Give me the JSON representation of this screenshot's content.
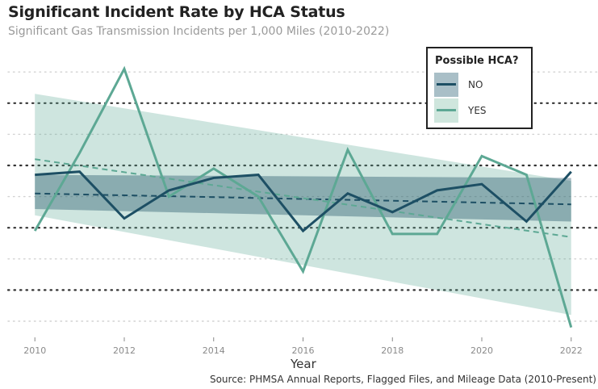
{
  "chart_data": {
    "type": "line",
    "title": "Significant Incident Rate by HCA Status",
    "subtitle": "Significant Gas Transmission Incidents per 1,000 Miles (2010-2022)",
    "xlabel": "Year",
    "ylabel": "",
    "source": "Source: PHMSA Annual Reports, Flagged Files, and Mileage Data (2010-Present)",
    "x": [
      2010,
      2011,
      2012,
      2013,
      2014,
      2015,
      2016,
      2017,
      2018,
      2019,
      2020,
      2021,
      2022
    ],
    "x_ticks": [
      "2010",
      "2012",
      "2014",
      "2016",
      "2018",
      "2020",
      "2022"
    ],
    "xlim": [
      2009.4,
      2022.6
    ],
    "ylim": [
      0.0,
      1.0
    ],
    "grid": "horizontal dotted",
    "legend": {
      "title": "Possible HCA?",
      "placement": "top-right"
    },
    "series": [
      {
        "name": "NO",
        "color": "#1d4f64",
        "values": [
          0.47,
          0.48,
          0.33,
          0.42,
          0.46,
          0.47,
          0.29,
          0.41,
          0.35,
          0.42,
          0.44,
          0.32,
          0.48
        ],
        "trend": [
          0.41,
          0.375
        ],
        "band_lower": [
          0.36,
          0.32
        ],
        "band_upper": [
          0.47,
          0.46
        ]
      },
      {
        "name": "YES",
        "color": "#5da894",
        "values": [
          0.29,
          0.54,
          0.81,
          0.4,
          0.49,
          0.4,
          0.16,
          0.55,
          0.28,
          0.28,
          0.53,
          0.47,
          -0.02
        ],
        "trend": [
          0.52,
          0.27
        ],
        "band_lower": [
          0.34,
          0.02
        ],
        "band_upper": [
          0.73,
          0.45
        ]
      }
    ]
  }
}
